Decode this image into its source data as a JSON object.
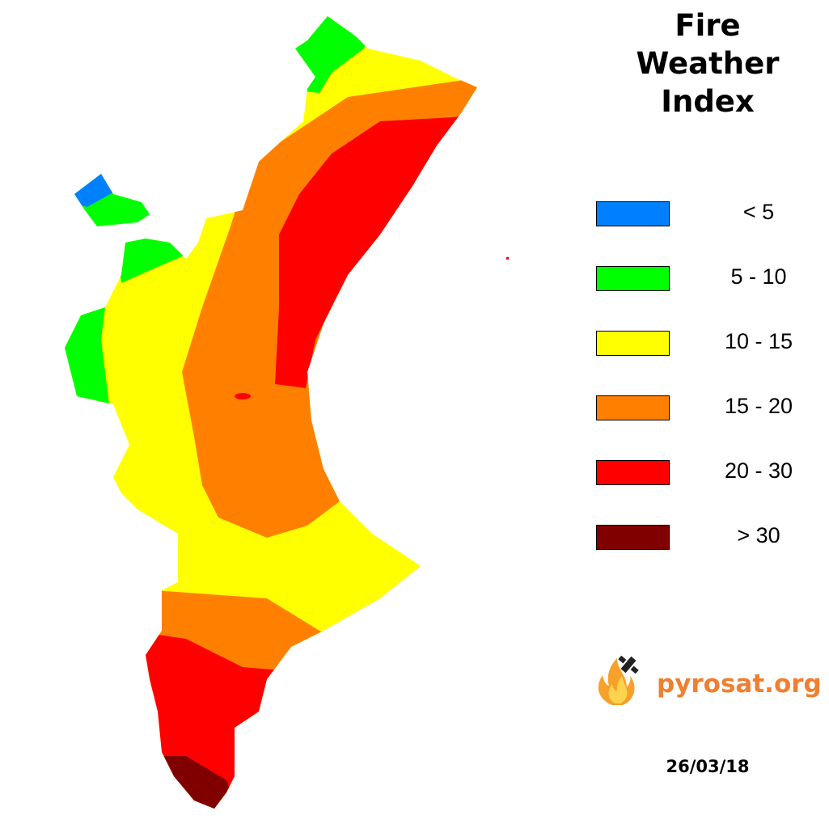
{
  "title": "Fire Weather Index",
  "legend": [
    {
      "label": "< 5",
      "color": "#0080ff"
    },
    {
      "label": "5 - 10",
      "color": "#00ff00"
    },
    {
      "label": "10 - 15",
      "color": "#ffff00"
    },
    {
      "label": "15 - 20",
      "color": "#ff8000"
    },
    {
      "label": "20 - 30",
      "color": "#ff0000"
    },
    {
      "label": "> 30",
      "color": "#800000"
    }
  ],
  "brand": "pyrosat.org",
  "date": "26/03/18"
}
